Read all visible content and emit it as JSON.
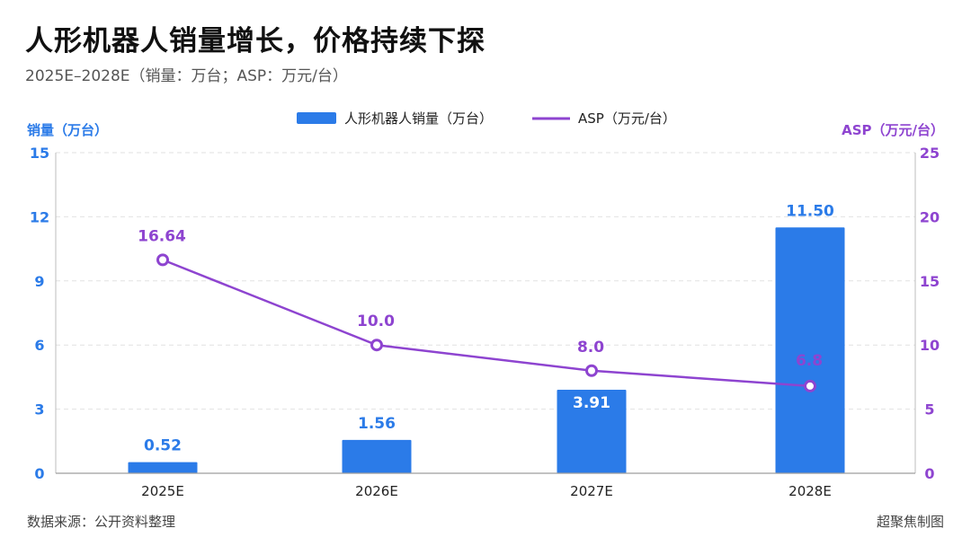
{
  "header": {
    "title": "人形机器人销量增长，价格持续下探",
    "subtitle": "2025E–2028E（销量：万台；ASP：万元/台）"
  },
  "footer": {
    "source": "数据来源：公开资料整理",
    "credit": "超聚焦制图"
  },
  "colors": {
    "bar": "#2B7BE8",
    "line": "#8E44D0",
    "grid": "#E2E2E2"
  },
  "chart_data": {
    "type": "bar",
    "categories": [
      "2025E",
      "2026E",
      "2027E",
      "2028E"
    ],
    "series": [
      {
        "name": "人形机器人销量（万台）",
        "type": "bar",
        "axis": "left",
        "values": [
          0.52,
          1.56,
          3.91,
          11.5
        ],
        "labels": [
          "0.52",
          "1.56",
          "3.91",
          "11.50"
        ]
      },
      {
        "name": "ASP（万元/台）",
        "type": "line",
        "axis": "right",
        "values": [
          16.64,
          10.0,
          8.0,
          6.8
        ],
        "labels": [
          "16.64",
          "10.0",
          "8.0",
          "6.8"
        ]
      }
    ],
    "ylabel_left": "销量（万台）",
    "ylabel_right": "ASP（万元/台）",
    "ylim_left": [
      0,
      15
    ],
    "yticks_left": [
      0,
      3,
      6,
      9,
      12,
      15
    ],
    "ylim_right": [
      0,
      25
    ],
    "yticks_right": [
      0,
      5,
      10,
      15,
      20,
      25
    ],
    "grid": true,
    "legend_position": "top-center"
  }
}
